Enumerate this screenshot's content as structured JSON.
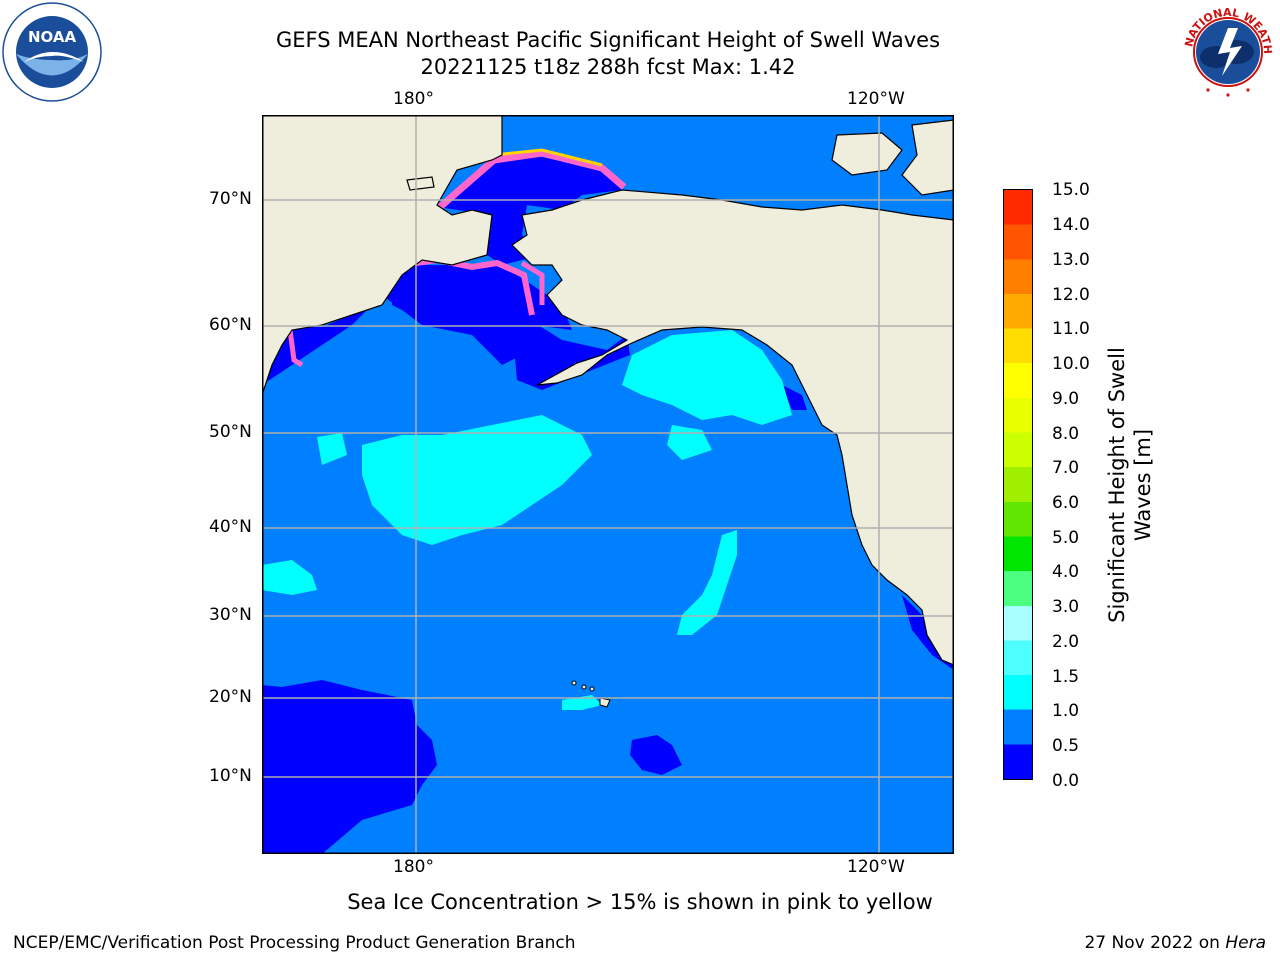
{
  "header": {
    "title_line1": "GEFS MEAN Northeast Pacific Significant Height of Swell Waves",
    "title_line2": "20221125 t18z 288h fcst   Max: 1.42"
  },
  "logos": {
    "left": "noaa-logo",
    "right": "nws-logo",
    "left_text": "NOAA",
    "right_text": "NATIONAL WEATHER SERVICE"
  },
  "map": {
    "top_lon_labels": [
      "180°",
      "120°W"
    ],
    "bottom_lon_labels": [
      "180°",
      "120°W"
    ],
    "lat_labels": [
      "70°N",
      "60°N",
      "50°N",
      "40°N",
      "30°N",
      "20°N",
      "10°N"
    ],
    "colors": {
      "ocean_0_0.5": "#0000ff",
      "ocean_0.5_1.0": "#0080ff",
      "ocean_1.0_1.5": "#00ffff",
      "land": "#efeddc",
      "grid": "#b0b0b0",
      "sea_ice": "#ff66cc"
    }
  },
  "colorbar": {
    "ticks": [
      "15.0",
      "14.0",
      "13.0",
      "12.0",
      "11.0",
      "10.0",
      "9.0",
      "8.0",
      "7.0",
      "6.0",
      "5.0",
      "4.0",
      "3.0",
      "2.0",
      "1.5",
      "1.0",
      "0.5",
      "0.0"
    ],
    "label_line1": "Significant Height of Swell",
    "label_line2": "Waves [m]",
    "colors": [
      "#0000ff",
      "#0080ff",
      "#00ffff",
      "#4dffff",
      "#a8ffff",
      "#4dff80",
      "#00e600",
      "#60e600",
      "#a0ee00",
      "#ccff00",
      "#e8ff00",
      "#ffff00",
      "#ffdd00",
      "#ffaa00",
      "#ff8000",
      "#ff5500",
      "#ff2a00",
      "#ff0000"
    ]
  },
  "note": "Sea Ice Concentration > 15% is shown in pink to yellow",
  "footer": {
    "left": "NCEP/EMC/Verification Post Processing Product Generation Branch",
    "right_date": "27 Nov 2022 on",
    "right_machine": "Hera"
  }
}
